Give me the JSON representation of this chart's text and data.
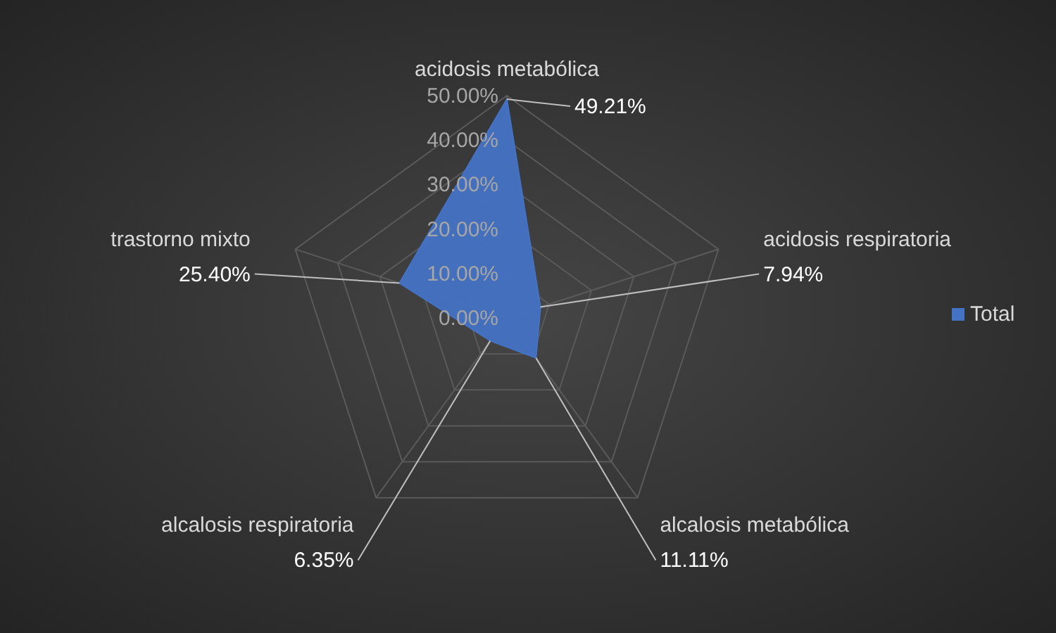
{
  "chart_data": {
    "type": "radar",
    "categories": [
      "acidosis metabólica",
      "acidosis respiratoria",
      "alcalosis metabólica",
      "alcalosis respiratoria",
      "trastorno mixto"
    ],
    "series": [
      {
        "name": "Total",
        "color": "#4472c4",
        "values": [
          49.21,
          7.94,
          11.11,
          6.35,
          25.4
        ],
        "value_labels": [
          "49.21%",
          "7.94%",
          "11.11%",
          "6.35%",
          "25.40%"
        ]
      }
    ],
    "ylim": [
      0,
      50
    ],
    "yticks": [
      {
        "value": 0,
        "label": "0.00%"
      },
      {
        "value": 10,
        "label": "10.00%"
      },
      {
        "value": 20,
        "label": "20.00%"
      },
      {
        "value": 30,
        "label": "30.00%"
      },
      {
        "value": 40,
        "label": "40.00%"
      },
      {
        "value": 50,
        "label": "50.00%"
      }
    ],
    "grid": true,
    "legend": "right",
    "marker": "none"
  }
}
